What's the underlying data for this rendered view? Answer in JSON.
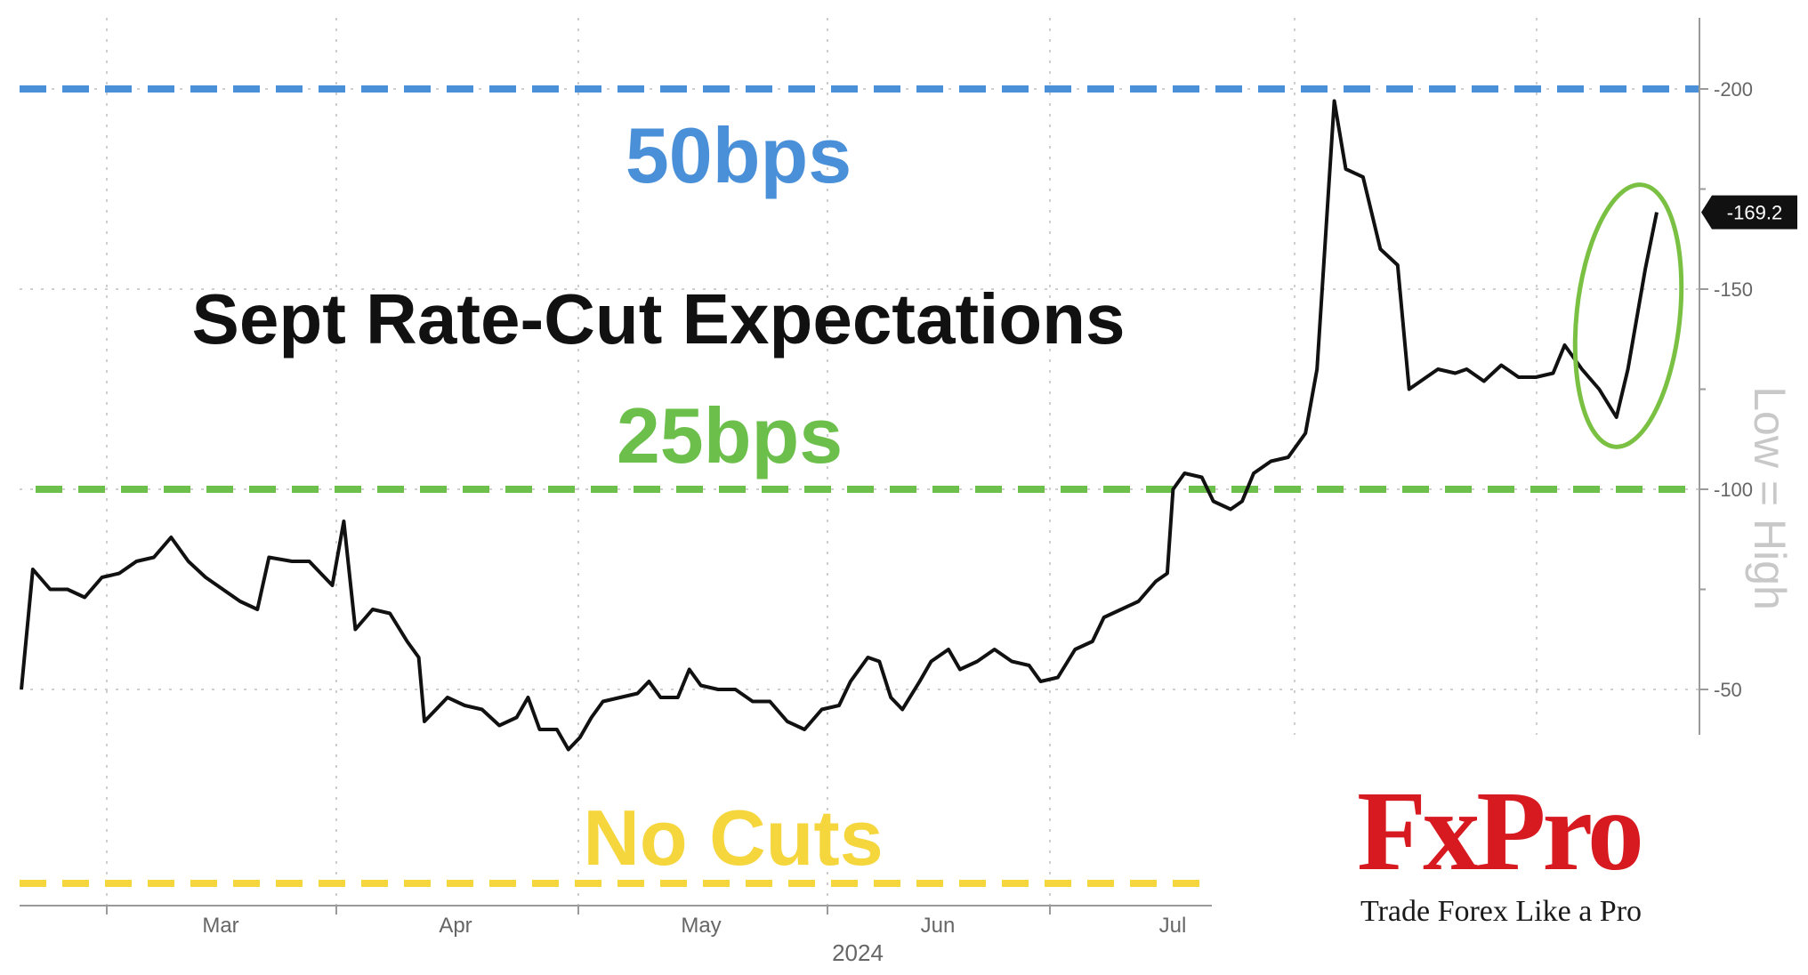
{
  "chart_data": {
    "type": "line",
    "title": "Sept Rate-Cut Expectations",
    "x_axis_label": "2024",
    "x_ticks": [
      "Mar",
      "Apr",
      "May",
      "Jun",
      "Jul"
    ],
    "y_axis_label": "Low = High",
    "y_ticks": [
      "200",
      "150",
      "100",
      "50"
    ],
    "y_range": [
      35,
      220
    ],
    "grid": true,
    "last_value_label": "169.2",
    "reference_lines": [
      {
        "label": "50bps",
        "value": 200,
        "color": "#4a90d9"
      },
      {
        "label": "25bps",
        "value": 100,
        "color": "#6cbf4b"
      },
      {
        "label": "No Cuts",
        "value": 0,
        "color": "#f5d63d"
      }
    ],
    "annotation": "green circle highlights latest rise",
    "series": [
      {
        "values": [
          [
            0,
            50
          ],
          [
            2,
            80
          ],
          [
            5,
            75
          ],
          [
            8,
            75
          ],
          [
            11,
            73
          ],
          [
            14,
            78
          ],
          [
            17,
            79
          ],
          [
            20,
            82
          ],
          [
            23,
            83
          ],
          [
            26,
            88
          ],
          [
            29,
            82
          ],
          [
            32,
            78
          ],
          [
            35,
            75
          ],
          [
            38,
            72
          ],
          [
            41,
            70
          ],
          [
            43,
            83
          ],
          [
            47,
            82
          ],
          [
            50,
            82
          ],
          [
            52,
            79
          ],
          [
            54,
            76
          ],
          [
            56,
            92
          ],
          [
            58,
            65
          ],
          [
            61,
            70
          ],
          [
            64,
            69
          ],
          [
            67,
            62
          ],
          [
            69,
            58
          ],
          [
            70,
            42
          ],
          [
            72,
            45
          ],
          [
            74,
            48
          ],
          [
            77,
            46
          ],
          [
            80,
            45
          ],
          [
            83,
            41
          ],
          [
            86,
            43
          ],
          [
            88,
            48
          ],
          [
            90,
            40
          ],
          [
            93,
            40
          ],
          [
            95,
            35
          ],
          [
            97,
            38
          ],
          [
            99,
            43
          ],
          [
            101,
            47
          ],
          [
            104,
            48
          ],
          [
            107,
            49
          ],
          [
            109,
            52
          ],
          [
            111,
            48
          ],
          [
            114,
            48
          ],
          [
            116,
            55
          ],
          [
            118,
            51
          ],
          [
            121,
            50
          ],
          [
            124,
            50
          ],
          [
            127,
            47
          ],
          [
            130,
            47
          ],
          [
            133,
            42
          ],
          [
            136,
            40
          ],
          [
            139,
            45
          ],
          [
            142,
            46
          ],
          [
            144,
            52
          ],
          [
            147,
            58
          ],
          [
            149,
            57
          ],
          [
            151,
            48
          ],
          [
            153,
            45
          ],
          [
            156,
            52
          ],
          [
            158,
            57
          ],
          [
            161,
            60
          ],
          [
            163,
            55
          ],
          [
            166,
            57
          ],
          [
            169,
            60
          ],
          [
            172,
            57
          ],
          [
            175,
            56
          ],
          [
            177,
            52
          ],
          [
            180,
            53
          ],
          [
            183,
            60
          ],
          [
            186,
            62
          ],
          [
            188,
            68
          ],
          [
            191,
            70
          ],
          [
            194,
            72
          ],
          [
            197,
            77
          ],
          [
            199,
            79
          ],
          [
            200,
            100
          ],
          [
            202,
            104
          ],
          [
            205,
            103
          ],
          [
            207,
            97
          ],
          [
            210,
            95
          ],
          [
            212,
            97
          ],
          [
            214,
            104
          ],
          [
            217,
            107
          ],
          [
            220,
            108
          ],
          [
            223,
            114
          ],
          [
            225,
            130
          ],
          [
            228,
            197
          ],
          [
            230,
            180
          ],
          [
            233,
            178
          ],
          [
            236,
            160
          ],
          [
            239,
            156
          ],
          [
            241,
            125
          ],
          [
            244,
            128
          ],
          [
            246,
            130
          ],
          [
            249,
            129
          ],
          [
            251,
            130
          ],
          [
            254,
            127
          ],
          [
            257,
            131
          ],
          [
            260,
            128
          ],
          [
            263,
            128
          ],
          [
            266,
            129
          ],
          [
            268,
            136
          ],
          [
            271,
            130
          ],
          [
            274,
            125
          ],
          [
            277,
            118
          ],
          [
            279,
            130
          ],
          [
            282,
            155
          ],
          [
            284,
            169.2
          ]
        ]
      }
    ]
  },
  "brand": {
    "name": "FxPro",
    "tagline": "Trade Forex Like a Pro"
  }
}
